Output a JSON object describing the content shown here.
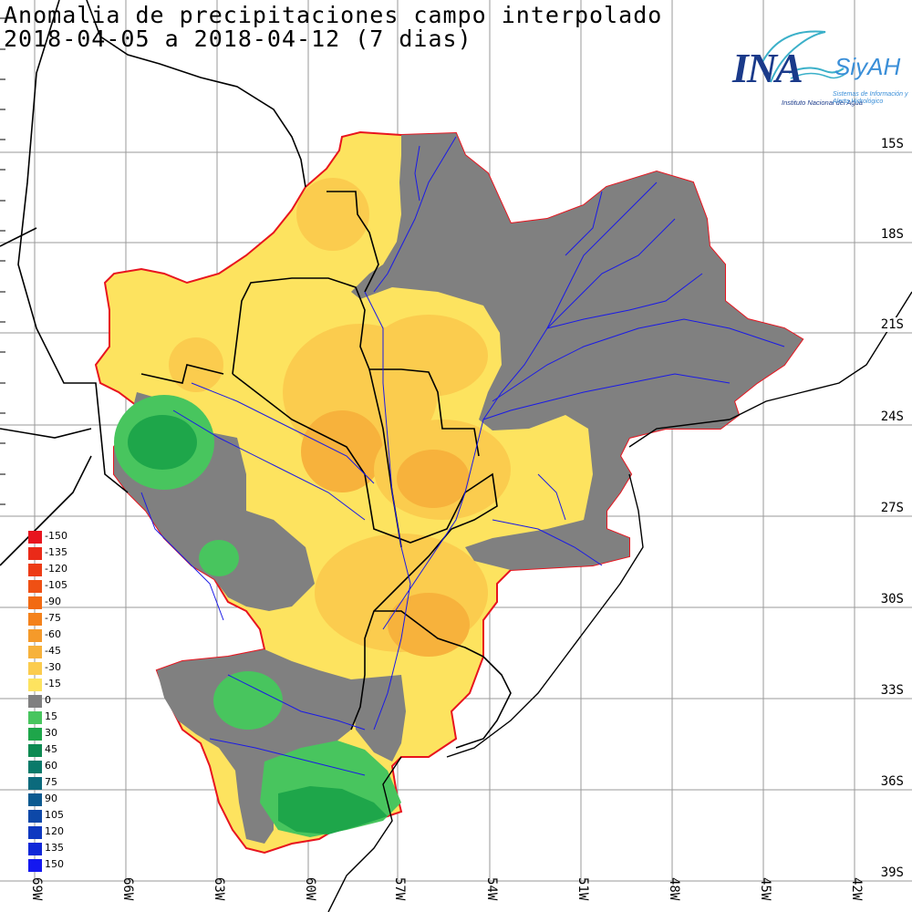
{
  "header": {
    "title": "Anomalia de precipitaciones campo interpolado",
    "period": "2018-04-05 a 2018-04-12 (7 dias)"
  },
  "logo": {
    "name": "INA",
    "system": "SiyAH",
    "institute": "Instituto Nacional del Agua",
    "system_full": "Sistemas de Información y Alerta Hidrológico"
  },
  "axes": {
    "lat_labels": [
      "15S",
      "18S",
      "21S",
      "24S",
      "27S",
      "30S",
      "33S",
      "36S",
      "39S"
    ],
    "lon_labels": [
      "69W",
      "66W",
      "63W",
      "60W",
      "57W",
      "54W",
      "51W",
      "48W",
      "45W",
      "42W"
    ]
  },
  "legend": {
    "items": [
      {
        "label": "-150",
        "color": "#e8141e"
      },
      {
        "label": "-135",
        "color": "#ea2a18"
      },
      {
        "label": "-120",
        "color": "#ed3c16"
      },
      {
        "label": "-105",
        "color": "#ef5014"
      },
      {
        "label": "-90",
        "color": "#f26a12"
      },
      {
        "label": "-75",
        "color": "#f4821c"
      },
      {
        "label": "-60",
        "color": "#f59a2a"
      },
      {
        "label": "-45",
        "color": "#f7b23c"
      },
      {
        "label": "-30",
        "color": "#fbcc4e"
      },
      {
        "label": "-15",
        "color": "#fde35f"
      },
      {
        "label": "0",
        "color": "#808080"
      },
      {
        "label": "15",
        "color": "#48c55e"
      },
      {
        "label": "30",
        "color": "#1ea64a"
      },
      {
        "label": "45",
        "color": "#0e8a52"
      },
      {
        "label": "60",
        "color": "#0a7a6a"
      },
      {
        "label": "75",
        "color": "#0b6a7c"
      },
      {
        "label": "90",
        "color": "#0c5a90"
      },
      {
        "label": "105",
        "color": "#0d48a8"
      },
      {
        "label": "120",
        "color": "#0e38c0"
      },
      {
        "label": "135",
        "color": "#1028d8"
      },
      {
        "label": "150",
        "color": "#1418f0"
      }
    ]
  },
  "colors": {
    "basin_outline": "#e8141e",
    "rivers": "#1a1ae6",
    "borders": "#000000",
    "grid": "#9a9a9a"
  }
}
